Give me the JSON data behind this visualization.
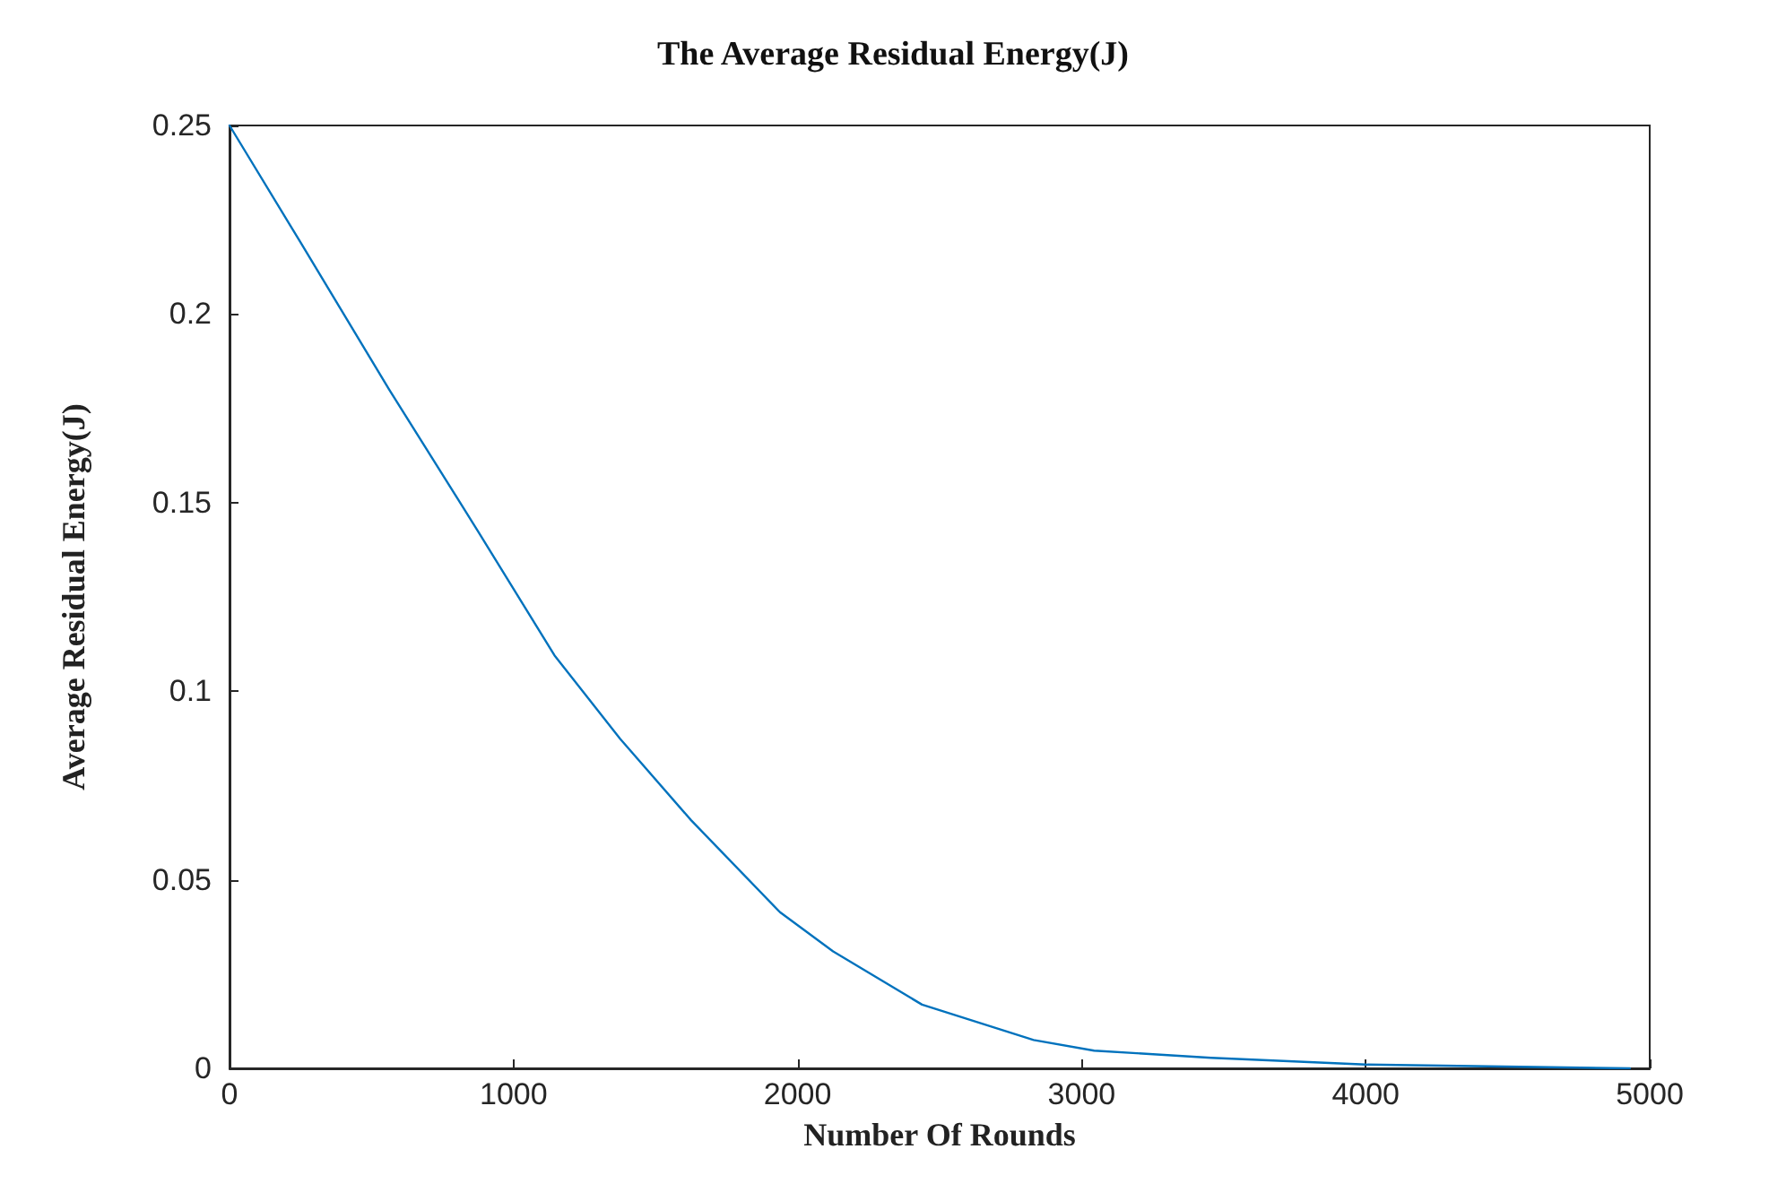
{
  "chart_data": {
    "type": "line",
    "title": "The Average Residual Energy(J)",
    "xlabel": "Number Of Rounds",
    "ylabel": "Average Residual Energy(J)",
    "x": [
      0,
      250,
      562,
      875,
      1144,
      1375,
      1625,
      1938,
      2125,
      2438,
      2831,
      3044,
      3456,
      4000,
      4650,
      4930
    ],
    "series": [
      {
        "color": "#0072bd",
        "values": [
          0.25,
          0.219,
          0.18,
          0.1424,
          0.1095,
          0.0874,
          0.0658,
          0.0414,
          0.031,
          0.0169,
          0.0075,
          0.0047,
          0.0028,
          0.001,
          0.0003,
          0
        ]
      }
    ],
    "xlim": [
      0,
      5000
    ],
    "xticks": [
      0,
      1000,
      2000,
      3000,
      4000,
      5000
    ],
    "ylim": [
      0,
      0.25
    ],
    "yticks": [
      0,
      0.05,
      0.1,
      0.15,
      0.2,
      0.25
    ],
    "grid": false,
    "marker": "none",
    "line_style": "solid"
  }
}
